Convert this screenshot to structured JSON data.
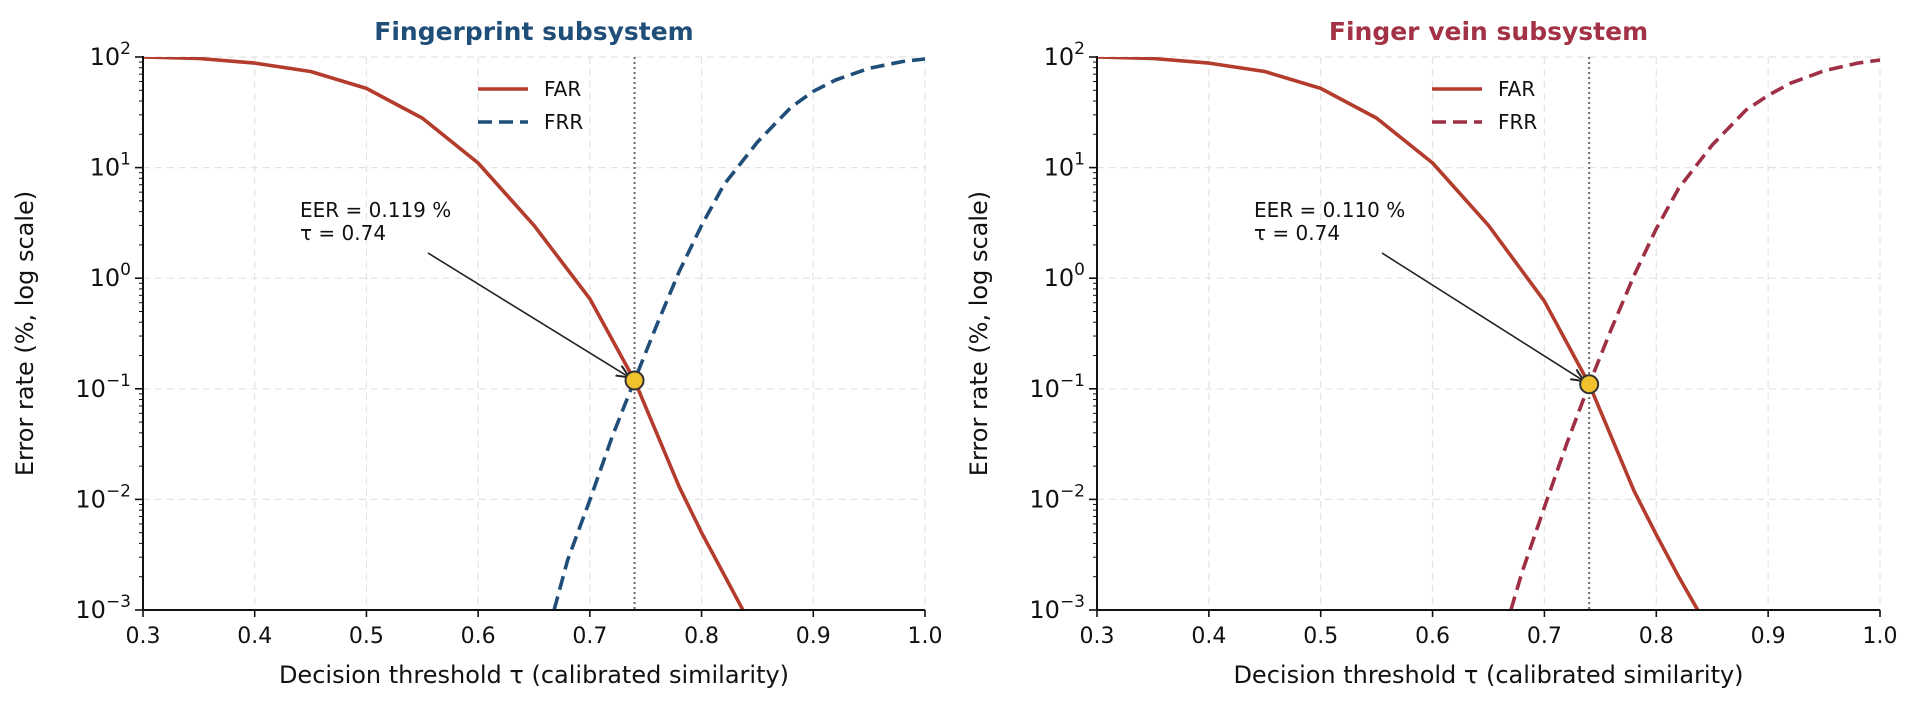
{
  "colors": {
    "far_red": "#b43c2d",
    "frr_blue": "#1f4e79",
    "frr_crimson": "#9e2f44",
    "title_blue": "#1f4e79",
    "title_crimson": "#a33246",
    "eer_marker_fill": "#f2c12e",
    "eer_marker_edge": "#333333",
    "grid": "#e3e3e3",
    "threshold_line": "#666666",
    "text": "#111111"
  },
  "chart_data": [
    {
      "type": "line",
      "title": "Fingerprint subsystem",
      "title_color": "#1f4e79",
      "xlabel": "Decision threshold  τ  (calibrated similarity)",
      "ylabel": "Error rate (%, log scale)",
      "xlim": [
        0.3,
        1.0
      ],
      "ylim": [
        0.001,
        100
      ],
      "yscale": "log",
      "grid": true,
      "legend": "top-center",
      "x_ticks": [
        "0.3",
        "0.4",
        "0.5",
        "0.6",
        "0.7",
        "0.8",
        "0.9",
        "1.0"
      ],
      "y_ticks": [
        {
          "value": 100,
          "base": "10",
          "exp": "2"
        },
        {
          "value": 10,
          "base": "10",
          "exp": "1"
        },
        {
          "value": 1,
          "base": "10",
          "exp": "0"
        },
        {
          "value": 0.1,
          "base": "10",
          "exp": "−1"
        },
        {
          "value": 0.01,
          "base": "10",
          "exp": "−2"
        },
        {
          "value": 0.001,
          "base": "10",
          "exp": "−3"
        }
      ],
      "threshold": 0.74,
      "series": [
        {
          "name": "FAR",
          "style": "solid",
          "color": "#b43c2d",
          "x": [
            0.3,
            0.35,
            0.4,
            0.45,
            0.5,
            0.55,
            0.6,
            0.65,
            0.7,
            0.74,
            0.78,
            0.8,
            0.82,
            0.837
          ],
          "y": [
            100,
            97,
            88,
            74,
            52,
            28,
            11,
            3.0,
            0.65,
            0.119,
            0.013,
            0.005,
            0.0021,
            0.001
          ]
        },
        {
          "name": "FRR",
          "style": "dashed",
          "color": "#1f4e79",
          "x": [
            0.668,
            0.68,
            0.7,
            0.72,
            0.74,
            0.76,
            0.78,
            0.8,
            0.82,
            0.85,
            0.88,
            0.9,
            0.92,
            0.95,
            0.98,
            1.0
          ],
          "y": [
            0.001,
            0.0028,
            0.0099,
            0.037,
            0.119,
            0.38,
            1.15,
            3.0,
            7.0,
            17,
            35,
            49,
            62,
            79,
            91,
            96
          ]
        }
      ],
      "eer": {
        "x": 0.74,
        "y": 0.119,
        "label_line1": "EER = 0.119 %",
        "label_line2": "τ = 0.74"
      }
    },
    {
      "type": "line",
      "title": "Finger vein subsystem",
      "title_color": "#a33246",
      "xlabel": "Decision threshold  τ  (calibrated similarity)",
      "ylabel": "Error rate (%, log scale)",
      "xlim": [
        0.3,
        1.0
      ],
      "ylim": [
        0.001,
        100
      ],
      "yscale": "log",
      "grid": true,
      "legend": "top-center",
      "x_ticks": [
        "0.3",
        "0.4",
        "0.5",
        "0.6",
        "0.7",
        "0.8",
        "0.9",
        "1.0"
      ],
      "y_ticks": [
        {
          "value": 100,
          "base": "10",
          "exp": "2"
        },
        {
          "value": 10,
          "base": "10",
          "exp": "1"
        },
        {
          "value": 1,
          "base": "10",
          "exp": "0"
        },
        {
          "value": 0.1,
          "base": "10",
          "exp": "−1"
        },
        {
          "value": 0.01,
          "base": "10",
          "exp": "−2"
        },
        {
          "value": 0.001,
          "base": "10",
          "exp": "−3"
        }
      ],
      "threshold": 0.74,
      "series": [
        {
          "name": "FAR",
          "style": "solid",
          "color": "#b43c2d",
          "x": [
            0.3,
            0.35,
            0.4,
            0.45,
            0.5,
            0.55,
            0.6,
            0.65,
            0.7,
            0.74,
            0.78,
            0.8,
            0.82,
            0.837
          ],
          "y": [
            100,
            97,
            88,
            74,
            52,
            28,
            11,
            3.0,
            0.62,
            0.11,
            0.012,
            0.0048,
            0.002,
            0.001
          ]
        },
        {
          "name": "FRR",
          "style": "dashed",
          "color": "#9e2f44",
          "x": [
            0.67,
            0.68,
            0.7,
            0.72,
            0.74,
            0.76,
            0.78,
            0.8,
            0.82,
            0.85,
            0.88,
            0.9,
            0.92,
            0.95,
            0.98,
            1.0
          ],
          "y": [
            0.001,
            0.0022,
            0.0085,
            0.032,
            0.11,
            0.35,
            1.05,
            2.8,
            6.5,
            16,
            33,
            45,
            58,
            75,
            88,
            94
          ]
        }
      ],
      "eer": {
        "x": 0.74,
        "y": 0.11,
        "label_line1": "EER = 0.110 %",
        "label_line2": "τ = 0.74"
      }
    }
  ]
}
